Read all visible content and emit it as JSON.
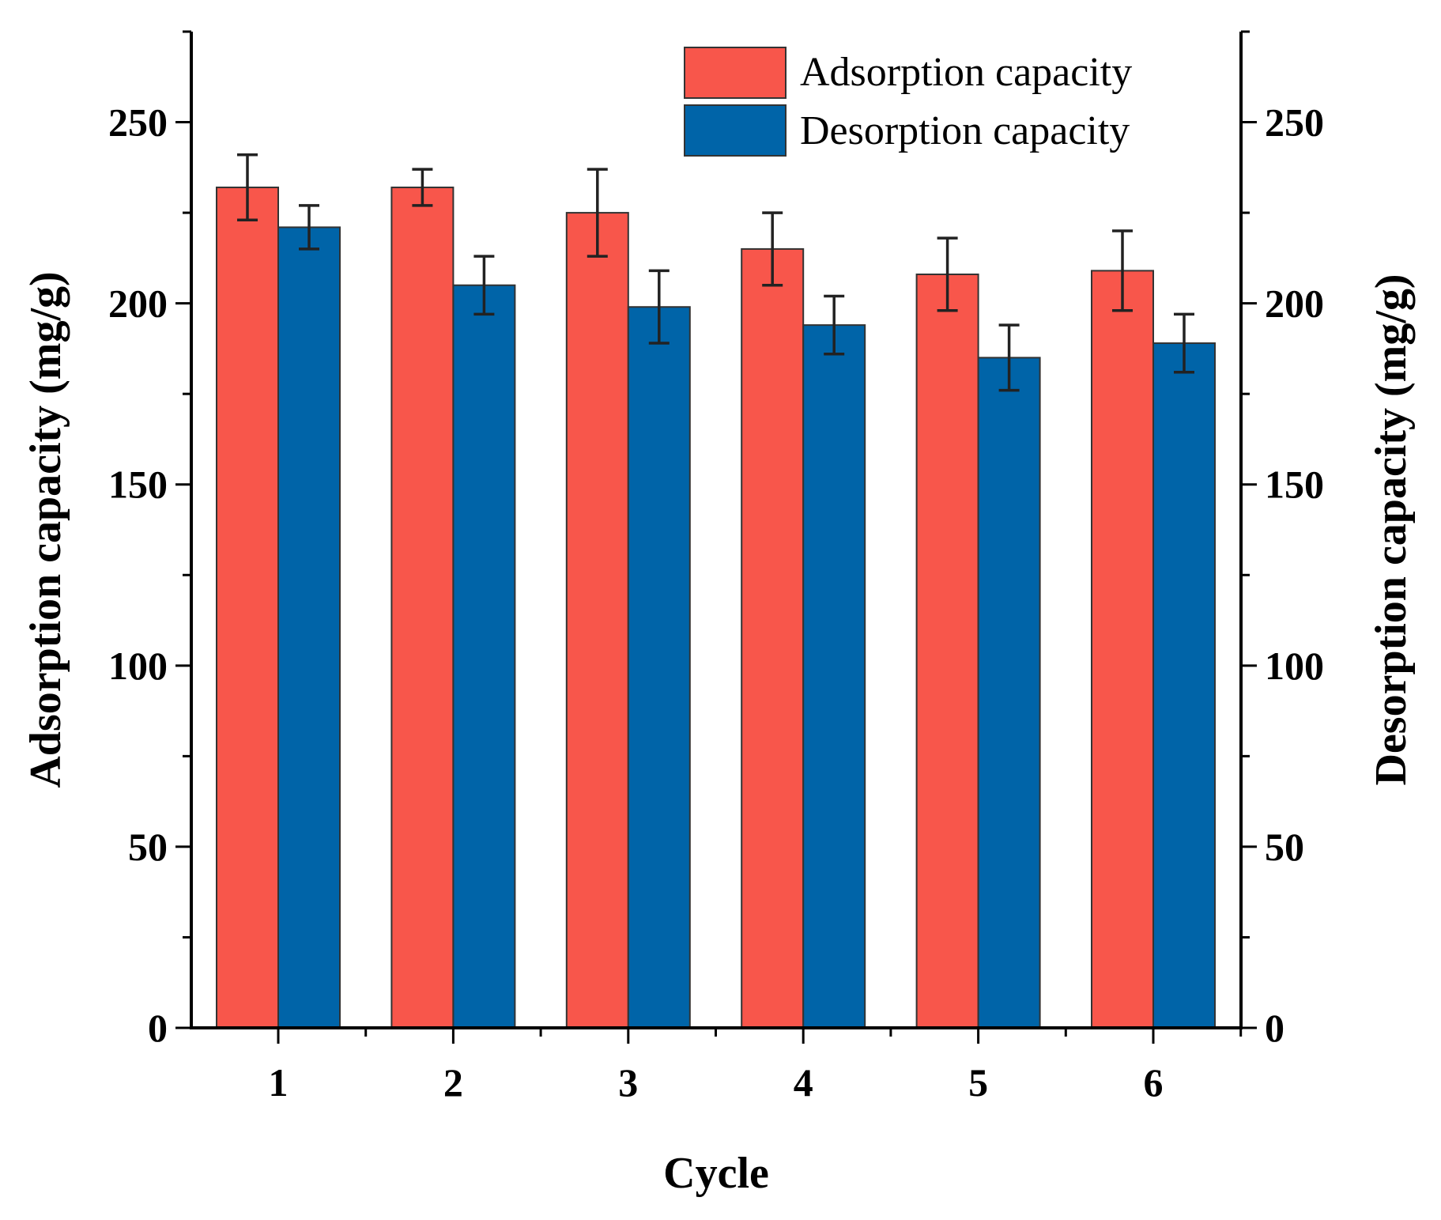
{
  "chart_data": {
    "type": "bar",
    "title": "",
    "xlabel": "Cycle",
    "ylabel": "Adsorption capacity (mg/g)",
    "ylabel_right": "Desorption capacity (mg/g)",
    "categories": [
      "1",
      "2",
      "3",
      "4",
      "5",
      "6"
    ],
    "ylim": [
      0,
      275
    ],
    "yticks": [
      0,
      50,
      100,
      150,
      200,
      250
    ],
    "legend_position": "top-right",
    "series": [
      {
        "name": "Adsorption capacity",
        "color": "#f8564b",
        "values": [
          232,
          232,
          225,
          215,
          208,
          209
        ],
        "errors": [
          9,
          5,
          12,
          10,
          10,
          11
        ]
      },
      {
        "name": "Desorption capacity",
        "color": "#0064a8",
        "values": [
          221,
          205,
          199,
          194,
          185,
          189
        ],
        "errors": [
          6,
          8,
          10,
          8,
          9,
          8
        ]
      }
    ]
  }
}
